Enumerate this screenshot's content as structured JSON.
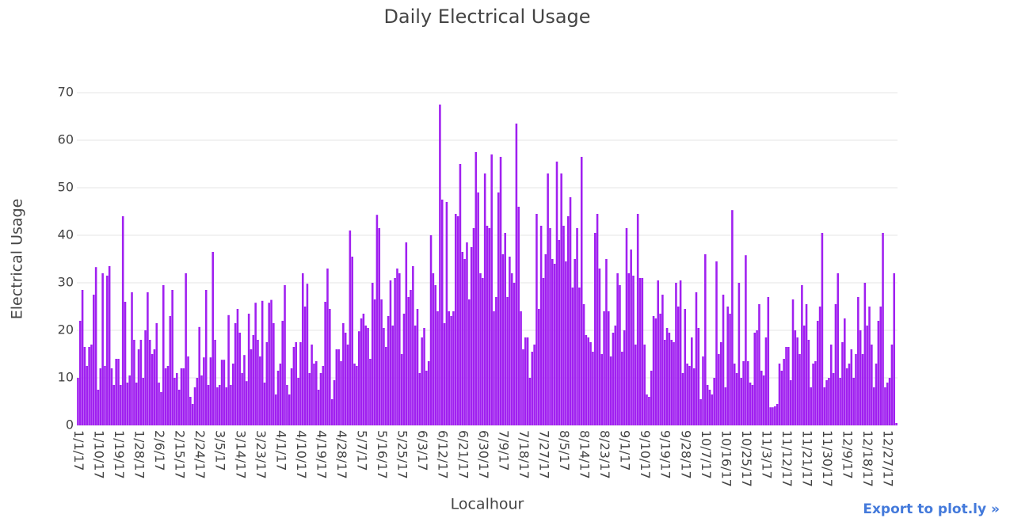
{
  "chart_data": {
    "type": "bar",
    "title": "Daily Electrical Usage",
    "x_label": "Localhour",
    "y_label": "Electrical Usage",
    "categories": [
      "1/1/17",
      null,
      null,
      null,
      null,
      null,
      null,
      null,
      null,
      "1/10/17",
      null,
      null,
      null,
      null,
      null,
      null,
      null,
      null,
      "1/19/17",
      null,
      null,
      null,
      null,
      null,
      null,
      null,
      null,
      "1/28/17",
      null,
      null,
      null,
      null,
      null,
      null,
      null,
      null,
      "2/6/17",
      null,
      null,
      null,
      null,
      null,
      null,
      null,
      null,
      "2/15/17",
      null,
      null,
      null,
      null,
      null,
      null,
      null,
      null,
      "2/24/17",
      null,
      null,
      null,
      null,
      null,
      null,
      null,
      null,
      "3/5/17",
      null,
      null,
      null,
      null,
      null,
      null,
      null,
      null,
      "3/14/17",
      null,
      null,
      null,
      null,
      null,
      null,
      null,
      null,
      "3/23/17",
      null,
      null,
      null,
      null,
      null,
      null,
      null,
      null,
      "4/1/17",
      null,
      null,
      null,
      null,
      null,
      null,
      null,
      null,
      "4/10/17",
      null,
      null,
      null,
      null,
      null,
      null,
      null,
      null,
      "4/19/17",
      null,
      null,
      null,
      null,
      null,
      null,
      null,
      null,
      "4/28/17",
      null,
      null,
      null,
      null,
      null,
      null,
      null,
      null,
      "5/7/17",
      null,
      null,
      null,
      null,
      null,
      null,
      null,
      null,
      "5/16/17",
      null,
      null,
      null,
      null,
      null,
      null,
      null,
      null,
      "5/25/17",
      null,
      null,
      null,
      null,
      null,
      null,
      null,
      null,
      "6/3/17",
      null,
      null,
      null,
      null,
      null,
      null,
      null,
      null,
      "6/12/17",
      null,
      null,
      null,
      null,
      null,
      null,
      null,
      null,
      "6/21/17",
      null,
      null,
      null,
      null,
      null,
      null,
      null,
      null,
      "6/30/17",
      null,
      null,
      null,
      null,
      null,
      null,
      null,
      null,
      "7/9/17",
      null,
      null,
      null,
      null,
      null,
      null,
      null,
      null,
      "7/18/17",
      null,
      null,
      null,
      null,
      null,
      null,
      null,
      null,
      "7/27/17",
      null,
      null,
      null,
      null,
      null,
      null,
      null,
      null,
      "8/5/17",
      null,
      null,
      null,
      null,
      null,
      null,
      null,
      null,
      "8/14/17",
      null,
      null,
      null,
      null,
      null,
      null,
      null,
      null,
      "8/23/17",
      null,
      null,
      null,
      null,
      null,
      null,
      null,
      null,
      "9/1/17",
      null,
      null,
      null,
      null,
      null,
      null,
      null,
      null,
      "9/10/17",
      null,
      null,
      null,
      null,
      null,
      null,
      null,
      null,
      "9/19/17",
      null,
      null,
      null,
      null,
      null,
      null,
      null,
      null,
      "9/28/17",
      null,
      null,
      null,
      null,
      null,
      null,
      null,
      null,
      "10/7/17",
      null,
      null,
      null,
      null,
      null,
      null,
      null,
      null,
      "10/16/17",
      null,
      null,
      null,
      null,
      null,
      null,
      null,
      null,
      "10/25/17",
      null,
      null,
      null,
      null,
      null,
      null,
      null,
      null,
      "11/3/17",
      null,
      null,
      null,
      null,
      null,
      null,
      null,
      null,
      "11/12/17",
      null,
      null,
      null,
      null,
      null,
      null,
      null,
      null,
      "11/21/17",
      null,
      null,
      null,
      null,
      null,
      null,
      null,
      null,
      "11/30/17",
      null,
      null,
      null,
      null,
      null,
      null,
      null,
      null,
      "12/9/17",
      null,
      null,
      null,
      null,
      null,
      null,
      null,
      null,
      "12/18/17",
      null,
      null,
      null,
      null,
      null,
      null,
      null,
      null,
      "12/27/17",
      null,
      null,
      null,
      null
    ],
    "values": [
      10,
      22,
      28.5,
      16.5,
      12.5,
      16.5,
      17,
      27.5,
      33.3,
      7.5,
      12,
      32,
      12.5,
      31.5,
      33.5,
      12,
      8.5,
      14,
      14,
      8.5,
      44,
      26,
      9,
      10.5,
      28,
      18,
      9,
      16,
      18,
      10,
      20,
      28,
      18,
      15,
      16,
      21.5,
      9,
      7,
      29.5,
      12,
      12.5,
      23,
      28.5,
      10,
      11,
      7.5,
      12,
      12,
      32,
      14.5,
      6,
      4.5,
      8,
      10,
      20.7,
      10.5,
      14.3,
      28.5,
      8.5,
      14.3,
      36.5,
      18,
      8,
      8.5,
      13.8,
      13.8,
      8,
      23.2,
      8.5,
      13,
      21.5,
      24.5,
      19.5,
      11,
      14.8,
      9.3,
      23.5,
      16,
      19,
      25.8,
      18,
      14.5,
      26.2,
      9,
      17.5,
      25.8,
      26.4,
      21.5,
      6.5,
      11.5,
      13,
      22,
      29.5,
      8.5,
      6.5,
      12,
      16.5,
      17.5,
      10,
      17.5,
      32,
      25,
      29.8,
      11,
      17,
      13,
      13.5,
      7.5,
      11,
      12.5,
      26,
      33,
      24.5,
      5.5,
      9.5,
      16,
      16,
      13.5,
      21.5,
      19.5,
      17,
      41,
      35.5,
      13,
      12.5,
      19.8,
      22.5,
      23.5,
      21,
      20.5,
      14,
      30,
      26.5,
      44.3,
      41.5,
      26.5,
      20.5,
      16.5,
      23,
      30.5,
      21,
      31,
      33,
      32,
      15,
      23.5,
      38.5,
      27,
      28.5,
      33.5,
      21,
      24.5,
      11,
      18.5,
      20.5,
      11.5,
      13.5,
      40,
      32,
      29.5,
      24,
      67.5,
      47.5,
      21.5,
      47,
      24,
      23,
      24,
      44.5,
      44,
      55,
      36.5,
      35,
      38.5,
      26.5,
      37.5,
      41.5,
      57.5,
      49,
      32,
      31,
      53,
      42,
      41.5,
      57,
      24,
      27,
      49,
      56.5,
      36,
      40.5,
      27,
      35.5,
      32,
      30,
      63.5,
      46,
      24,
      16,
      18.5,
      18.5,
      10,
      15.5,
      17,
      44.5,
      24.5,
      42,
      31,
      36,
      53,
      41.5,
      35,
      34,
      55.5,
      39,
      53,
      42,
      34.5,
      44,
      48,
      29,
      35,
      41.5,
      29,
      56.5,
      25.5,
      19,
      18.5,
      17.5,
      15.5,
      40.5,
      44.5,
      33,
      15,
      24,
      35,
      24,
      14.5,
      19.5,
      21,
      32,
      29.5,
      15.5,
      20,
      41.5,
      32,
      37,
      31.5,
      17,
      44.5,
      31,
      31,
      17,
      6.5,
      6,
      11.5,
      23,
      22.5,
      30.5,
      23.5,
      27.5,
      18,
      20.5,
      19.5,
      18,
      17.5,
      30,
      25,
      30.5,
      11,
      24.5,
      13,
      12.5,
      18.5,
      12,
      28,
      20.5,
      5.5,
      14.5,
      36,
      8.5,
      7.5,
      6.5,
      10,
      34.5,
      15,
      17.5,
      27.5,
      8,
      25,
      23.5,
      45.3,
      13,
      11,
      30,
      10,
      13.5,
      35.8,
      13.5,
      9,
      8.5,
      19.5,
      20,
      25.5,
      11.5,
      10.5,
      18.5,
      27,
      3.8,
      3.8,
      4,
      4.5,
      13,
      11.5,
      14,
      16.5,
      16.5,
      9.5,
      26.5,
      20,
      18.5,
      15,
      29.5,
      21,
      25.5,
      18,
      8,
      13,
      13.5,
      22,
      25,
      40.5,
      8,
      9.5,
      10,
      17,
      11,
      25.5,
      32,
      10,
      17.5,
      22.5,
      12,
      13,
      16,
      10,
      15,
      27,
      20,
      15,
      30,
      21,
      25,
      17,
      8,
      13,
      22,
      25,
      40.5,
      8,
      9,
      10,
      17,
      32,
      0.5
    ],
    "color": "#a020f0",
    "ylim": [
      0,
      70
    ],
    "yticks": [
      0,
      10,
      20,
      30,
      40,
      50,
      60,
      70
    ],
    "grid": true
  },
  "export_link": "Export to plot.ly »"
}
